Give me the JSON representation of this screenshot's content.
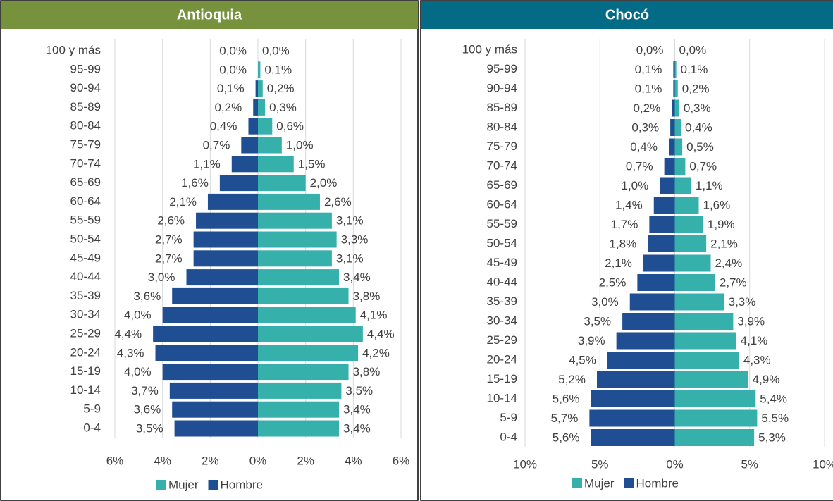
{
  "chart_data": [
    {
      "type": "pyramid",
      "title": "Antioquia",
      "categories": [
        "100 y más",
        "95-99",
        "90-94",
        "85-89",
        "80-84",
        "75-79",
        "70-74",
        "65-69",
        "60-64",
        "55-59",
        "50-54",
        "45-49",
        "40-44",
        "35-39",
        "30-34",
        "25-29",
        "20-24",
        "15-19",
        "10-14",
        "5-9",
        "0-4"
      ],
      "series": [
        {
          "name": "Mujer",
          "color": "#35b0ab",
          "values": [
            0.0,
            0.1,
            0.2,
            0.3,
            0.6,
            1.0,
            1.5,
            2.0,
            2.6,
            3.1,
            3.3,
            3.1,
            3.4,
            3.8,
            4.1,
            4.4,
            4.2,
            3.8,
            3.5,
            3.4,
            3.4
          ],
          "value_labels": [
            "0,0%",
            "0,1%",
            "0,2%",
            "0,3%",
            "0,6%",
            "1,0%",
            "1,5%",
            "2,0%",
            "2,6%",
            "3,1%",
            "3,3%",
            "3,1%",
            "3,4%",
            "3,8%",
            "4,1%",
            "4,4%",
            "4,2%",
            "3,8%",
            "3,5%",
            "3,4%",
            "3,4%"
          ]
        },
        {
          "name": "Hombre",
          "color": "#1f4e93",
          "values": [
            0.0,
            0.0,
            0.1,
            0.2,
            0.4,
            0.7,
            1.1,
            1.6,
            2.1,
            2.6,
            2.7,
            2.7,
            3.0,
            3.6,
            4.0,
            4.4,
            4.3,
            4.0,
            3.7,
            3.6,
            3.5
          ],
          "value_labels": [
            "0,0%",
            "0,0%",
            "0,1%",
            "0,2%",
            "0,4%",
            "0,7%",
            "1,1%",
            "1,6%",
            "2,1%",
            "2,6%",
            "2,7%",
            "2,7%",
            "3,0%",
            "3,6%",
            "4,0%",
            "4,4%",
            "4,3%",
            "4,0%",
            "3,7%",
            "3,6%",
            "3,5%"
          ]
        }
      ],
      "xlim": [
        -6,
        6
      ],
      "xticks": [
        {
          "value": -6,
          "label": "6%"
        },
        {
          "value": -4,
          "label": "4%"
        },
        {
          "value": -2,
          "label": "2%"
        },
        {
          "value": 0,
          "label": "0%"
        },
        {
          "value": 2,
          "label": "2%"
        },
        {
          "value": 4,
          "label": "4%"
        },
        {
          "value": 6,
          "label": "6%"
        }
      ],
      "grid": true,
      "legend": "bottom"
    },
    {
      "type": "pyramid",
      "title": "Chocó",
      "categories": [
        "100 y más",
        "95-99",
        "90-94",
        "85-89",
        "80-84",
        "75-79",
        "70-74",
        "65-69",
        "60-64",
        "55-59",
        "50-54",
        "45-49",
        "40-44",
        "35-39",
        "30-34",
        "25-29",
        "20-24",
        "15-19",
        "10-14",
        "5-9",
        "0-4"
      ],
      "series": [
        {
          "name": "Mujer",
          "color": "#35b0ab",
          "values": [
            0.0,
            0.1,
            0.2,
            0.3,
            0.4,
            0.5,
            0.7,
            1.1,
            1.6,
            1.9,
            2.1,
            2.4,
            2.7,
            3.3,
            3.9,
            4.1,
            4.3,
            4.9,
            5.4,
            5.5,
            5.3
          ],
          "value_labels": [
            "0,0%",
            "0,1%",
            "0,2%",
            "0,3%",
            "0,4%",
            "0,5%",
            "0,7%",
            "1,1%",
            "1,6%",
            "1,9%",
            "2,1%",
            "2,4%",
            "2,7%",
            "3,3%",
            "3,9%",
            "4,1%",
            "4,3%",
            "4,9%",
            "5,4%",
            "5,5%",
            "5,3%"
          ]
        },
        {
          "name": "Hombre",
          "color": "#1f4e93",
          "values": [
            0.0,
            0.1,
            0.1,
            0.2,
            0.3,
            0.4,
            0.7,
            1.0,
            1.4,
            1.7,
            1.8,
            2.1,
            2.5,
            3.0,
            3.5,
            3.9,
            4.5,
            5.2,
            5.6,
            5.7,
            5.6
          ],
          "value_labels": [
            "0,0%",
            "0,1%",
            "0,1%",
            "0,2%",
            "0,3%",
            "0,4%",
            "0,7%",
            "1,0%",
            "1,4%",
            "1,7%",
            "1,8%",
            "2,1%",
            "2,5%",
            "3,0%",
            "3,5%",
            "3,9%",
            "4,5%",
            "5,2%",
            "5,6%",
            "5,7%",
            "5,6%"
          ]
        }
      ],
      "xlim": [
        -10,
        10
      ],
      "xticks": [
        {
          "value": -10,
          "label": "10%"
        },
        {
          "value": -5,
          "label": "5%"
        },
        {
          "value": 0,
          "label": "0%"
        },
        {
          "value": 5,
          "label": "5%"
        },
        {
          "value": 10,
          "label": "10%"
        }
      ],
      "grid": true,
      "legend": "bottom"
    }
  ]
}
